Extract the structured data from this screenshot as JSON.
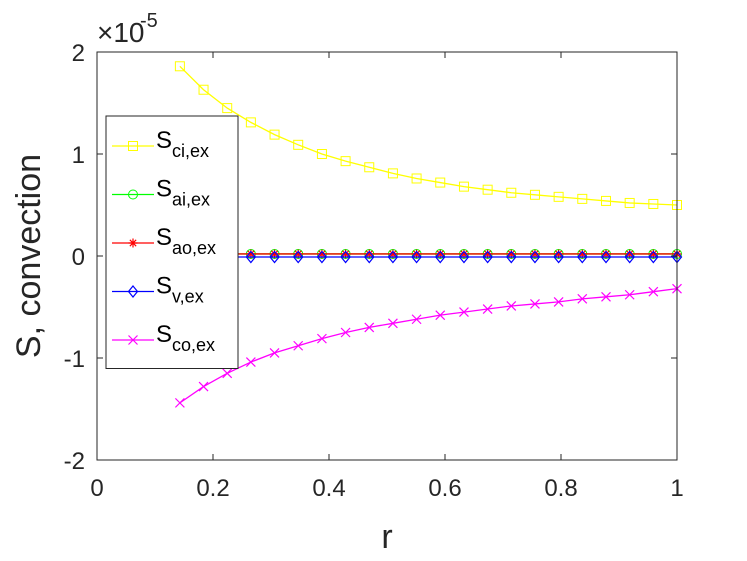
{
  "chart_data": {
    "type": "line",
    "title": "",
    "xlabel": "r",
    "ylabel": "S, convection",
    "y_exponent_label": "×10",
    "y_exponent_power": "-5",
    "xlim": [
      0,
      1
    ],
    "ylim": [
      -2,
      2
    ],
    "x_ticks": [
      0,
      0.2,
      0.4,
      0.6,
      0.8,
      1
    ],
    "x_tick_labels": [
      "0",
      "0.2",
      "0.4",
      "0.6",
      "0.8",
      "1"
    ],
    "y_ticks": [
      -2,
      -1,
      0,
      1,
      2
    ],
    "y_tick_labels": [
      "-2",
      "-1",
      "0",
      "1",
      "2"
    ],
    "grid": false,
    "legend_placement": "left",
    "x": [
      0.1429,
      0.1837,
      0.2245,
      0.2653,
      0.3061,
      0.3469,
      0.3878,
      0.4286,
      0.4694,
      0.5102,
      0.551,
      0.5918,
      0.6327,
      0.6735,
      0.7143,
      0.7551,
      0.7959,
      0.8367,
      0.8776,
      0.9184,
      0.9592,
      1.0
    ],
    "series": [
      {
        "name_main": "S",
        "name_sub": "ci,ex",
        "color": "#ffff00",
        "marker": "square",
        "values": [
          1.86,
          1.63,
          1.45,
          1.31,
          1.19,
          1.09,
          1.0,
          0.93,
          0.87,
          0.81,
          0.76,
          0.72,
          0.68,
          0.65,
          0.62,
          0.6,
          0.58,
          0.56,
          0.54,
          0.52,
          0.51,
          0.5
        ]
      },
      {
        "name_main": "S",
        "name_sub": "ai,ex",
        "color": "#00ff00",
        "marker": "circle",
        "values": [
          0.02,
          0.02,
          0.02,
          0.02,
          0.02,
          0.02,
          0.02,
          0.02,
          0.02,
          0.02,
          0.02,
          0.02,
          0.02,
          0.02,
          0.02,
          0.02,
          0.02,
          0.02,
          0.02,
          0.02,
          0.02,
          0.02
        ]
      },
      {
        "name_main": "S",
        "name_sub": "ao,ex",
        "color": "#ff0000",
        "marker": "asterisk",
        "values": [
          0.02,
          0.02,
          0.02,
          0.02,
          0.02,
          0.02,
          0.02,
          0.02,
          0.02,
          0.02,
          0.02,
          0.02,
          0.02,
          0.02,
          0.02,
          0.02,
          0.02,
          0.02,
          0.02,
          0.02,
          0.02,
          0.02
        ]
      },
      {
        "name_main": "S",
        "name_sub": "v,ex",
        "color": "#0000ff",
        "marker": "diamond",
        "values": [
          -0.01,
          -0.01,
          -0.01,
          -0.01,
          -0.01,
          -0.01,
          -0.01,
          -0.01,
          -0.01,
          -0.01,
          -0.01,
          -0.01,
          -0.01,
          -0.01,
          -0.01,
          -0.01,
          -0.01,
          -0.01,
          -0.01,
          -0.01,
          -0.01,
          -0.01
        ]
      },
      {
        "name_main": "S",
        "name_sub": "co,ex",
        "color": "#ff00ff",
        "marker": "x",
        "values": [
          -1.44,
          -1.28,
          -1.15,
          -1.04,
          -0.95,
          -0.88,
          -0.81,
          -0.75,
          -0.7,
          -0.66,
          -0.62,
          -0.58,
          -0.55,
          -0.52,
          -0.49,
          -0.47,
          -0.45,
          -0.42,
          -0.4,
          -0.38,
          -0.35,
          -0.32
        ]
      }
    ]
  }
}
